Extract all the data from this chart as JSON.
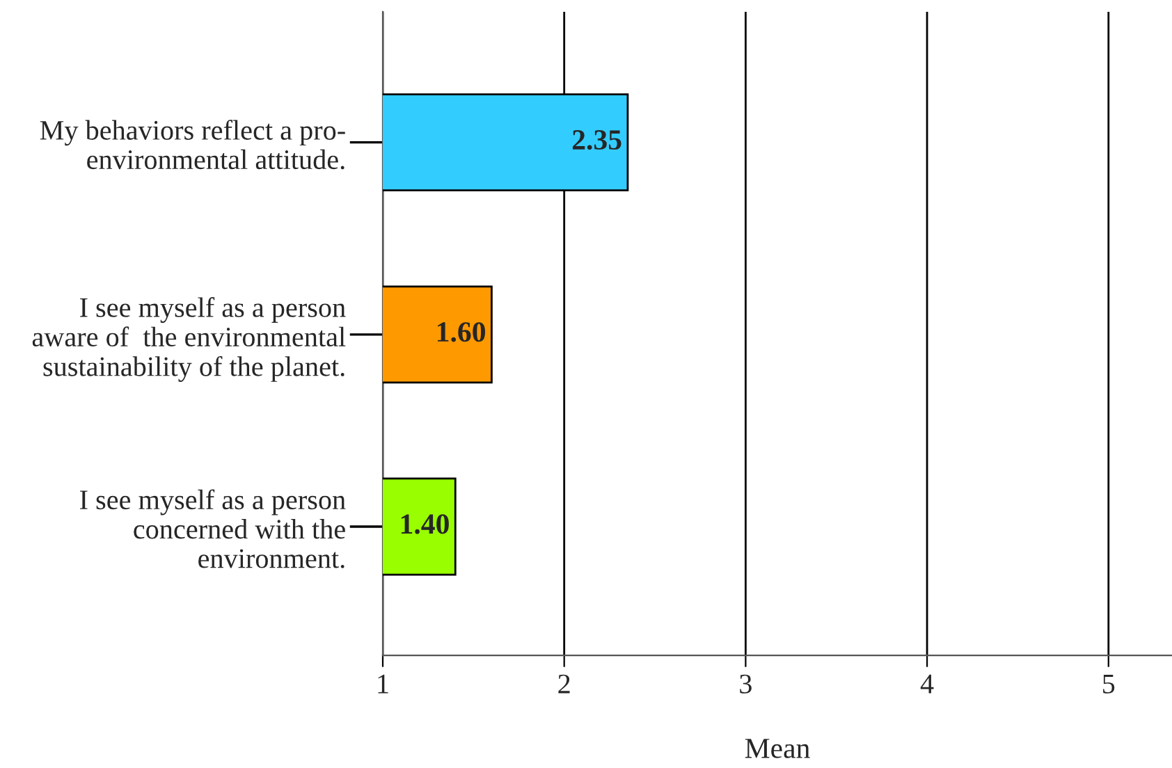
{
  "chart_data": {
    "type": "bar",
    "orientation": "horizontal",
    "xlabel": "Mean",
    "categories": [
      "My behaviors reflect a pro-\nenvironmental attitude.",
      "I see myself as a person\naware of  the environmental\nsustainability of the planet.",
      "I see myself as a person\nconcerned with the\nenvironment."
    ],
    "values": [
      2.35,
      1.6,
      1.4
    ],
    "value_labels": [
      "2.35",
      "1.60",
      "1.40"
    ],
    "colors": [
      "#33ccff",
      "#ff9900",
      "#99ff00"
    ],
    "xlim": [
      1,
      5.35
    ],
    "xticks": [
      1,
      2,
      3,
      4,
      5
    ],
    "grid": "x",
    "legend": false
  }
}
